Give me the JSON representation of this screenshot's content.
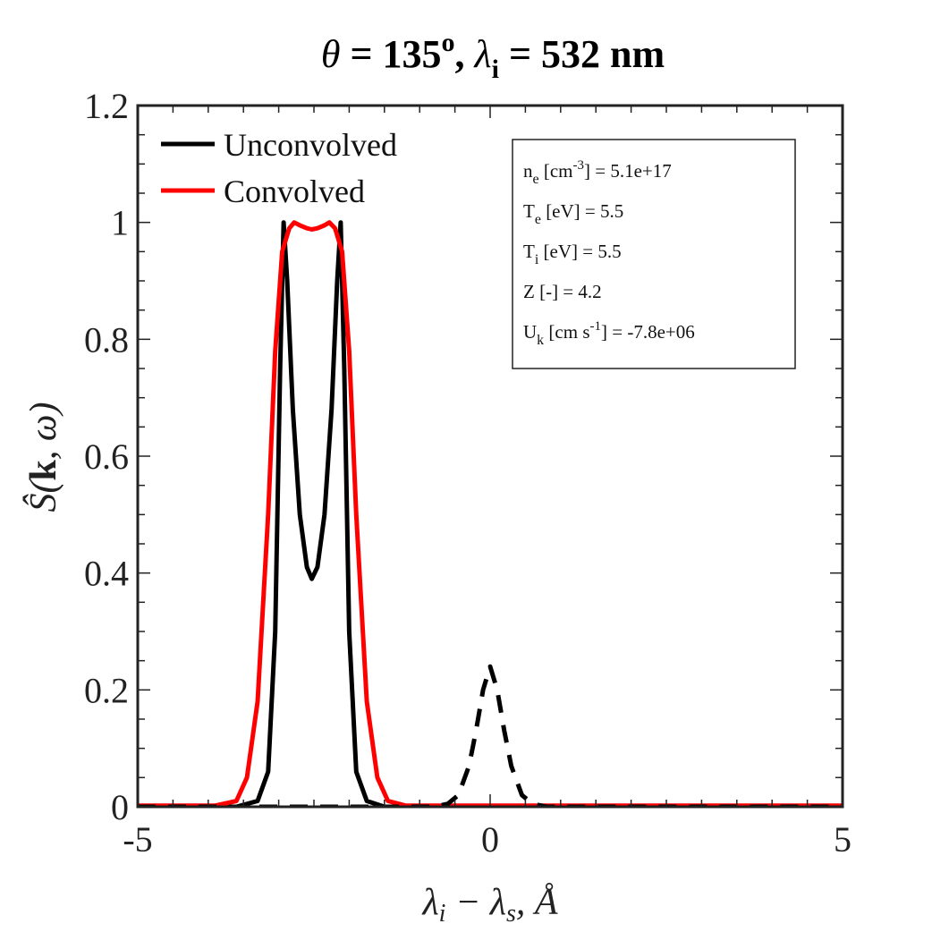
{
  "chart_data": {
    "type": "line",
    "title": {
      "theta_symbol": "θ",
      "theta_rest": " = 135",
      "theta_sup": "o",
      "sep": ", ",
      "lambda_symbol": "λ",
      "lambda_sub": "i",
      "lambda_rest": " = 532 nm"
    },
    "ylabel": {
      "prefix": "Ŝ(",
      "bold": "k",
      "suffix": ", ω)"
    },
    "xlabel": "λi − λs, Å",
    "xlabel_parts": {
      "a": "λ",
      "a_sub": "i",
      "mid": " − λ",
      "b_sub": "s",
      "end": ", Å"
    },
    "xlim": [
      -5,
      5
    ],
    "ylim": [
      0,
      1.2
    ],
    "xticks": [
      -5,
      0,
      5
    ],
    "xtick_labels": [
      "-5",
      "0",
      "5"
    ],
    "yticks": [
      0,
      0.2,
      0.4,
      0.6,
      0.8,
      1.0,
      1.2
    ],
    "ytick_labels": [
      "0",
      "0.2",
      "0.4",
      "0.6",
      "0.8",
      "1",
      "1.2"
    ],
    "grid": false,
    "legend_placement": "top-left",
    "series": [
      {
        "name": "Unconvolved",
        "color": "#000000",
        "style": "solid",
        "points": [
          [
            -5,
            0
          ],
          [
            -3.6,
            0
          ],
          [
            -3.3,
            0.01
          ],
          [
            -3.15,
            0.06
          ],
          [
            -3.05,
            0.3
          ],
          [
            -2.98,
            0.75
          ],
          [
            -2.93,
            1.0
          ],
          [
            -2.88,
            0.9
          ],
          [
            -2.8,
            0.68
          ],
          [
            -2.7,
            0.5
          ],
          [
            -2.6,
            0.41
          ],
          [
            -2.53,
            0.39
          ],
          [
            -2.45,
            0.41
          ],
          [
            -2.35,
            0.5
          ],
          [
            -2.25,
            0.68
          ],
          [
            -2.17,
            0.9
          ],
          [
            -2.12,
            1.0
          ],
          [
            -2.07,
            0.75
          ],
          [
            -2.0,
            0.3
          ],
          [
            -1.9,
            0.06
          ],
          [
            -1.75,
            0.01
          ],
          [
            -1.5,
            0
          ],
          [
            5,
            0
          ]
        ]
      },
      {
        "name": "Convolved",
        "color": "#ff0000",
        "style": "solid",
        "points": [
          [
            -5,
            0.002
          ],
          [
            -3.9,
            0.002
          ],
          [
            -3.6,
            0.01
          ],
          [
            -3.45,
            0.05
          ],
          [
            -3.3,
            0.18
          ],
          [
            -3.15,
            0.5
          ],
          [
            -3.05,
            0.78
          ],
          [
            -2.95,
            0.95
          ],
          [
            -2.85,
            0.99
          ],
          [
            -2.78,
            1.0
          ],
          [
            -2.7,
            0.995
          ],
          [
            -2.6,
            0.99
          ],
          [
            -2.53,
            0.988
          ],
          [
            -2.45,
            0.99
          ],
          [
            -2.35,
            0.995
          ],
          [
            -2.28,
            1.0
          ],
          [
            -2.2,
            0.99
          ],
          [
            -2.1,
            0.95
          ],
          [
            -2.0,
            0.78
          ],
          [
            -1.9,
            0.5
          ],
          [
            -1.75,
            0.18
          ],
          [
            -1.6,
            0.05
          ],
          [
            -1.45,
            0.01
          ],
          [
            -1.2,
            0.002
          ],
          [
            5,
            0.002
          ]
        ]
      },
      {
        "name": "",
        "color": "#000000",
        "style": "dashed",
        "points": [
          [
            -5,
            0
          ],
          [
            -0.8,
            0
          ],
          [
            -0.6,
            0.005
          ],
          [
            -0.45,
            0.02
          ],
          [
            -0.3,
            0.07
          ],
          [
            -0.2,
            0.13
          ],
          [
            -0.1,
            0.2
          ],
          [
            0,
            0.24
          ],
          [
            0.1,
            0.2
          ],
          [
            0.2,
            0.13
          ],
          [
            0.3,
            0.07
          ],
          [
            0.45,
            0.02
          ],
          [
            0.6,
            0.005
          ],
          [
            0.8,
            0
          ],
          [
            5,
            0
          ]
        ]
      }
    ],
    "parameters": [
      {
        "sym": "n",
        "sub": "e",
        "pre": " [cm",
        "sup": "-3",
        "post": "] = 5.1e+17"
      },
      {
        "sym": "T",
        "sub": "e",
        "pre": " [eV] = 5.5",
        "sup": "",
        "post": ""
      },
      {
        "sym": "T",
        "sub": "i",
        "pre": " [eV] = 5.5",
        "sup": "",
        "post": ""
      },
      {
        "sym": "Z",
        "sub": "",
        "pre": " [-] = 4.2",
        "sup": "",
        "post": ""
      },
      {
        "sym": "U",
        "sub": "k",
        "pre": " [cm s",
        "sup": "-1",
        "post": "] = -7.8e+06"
      }
    ]
  }
}
